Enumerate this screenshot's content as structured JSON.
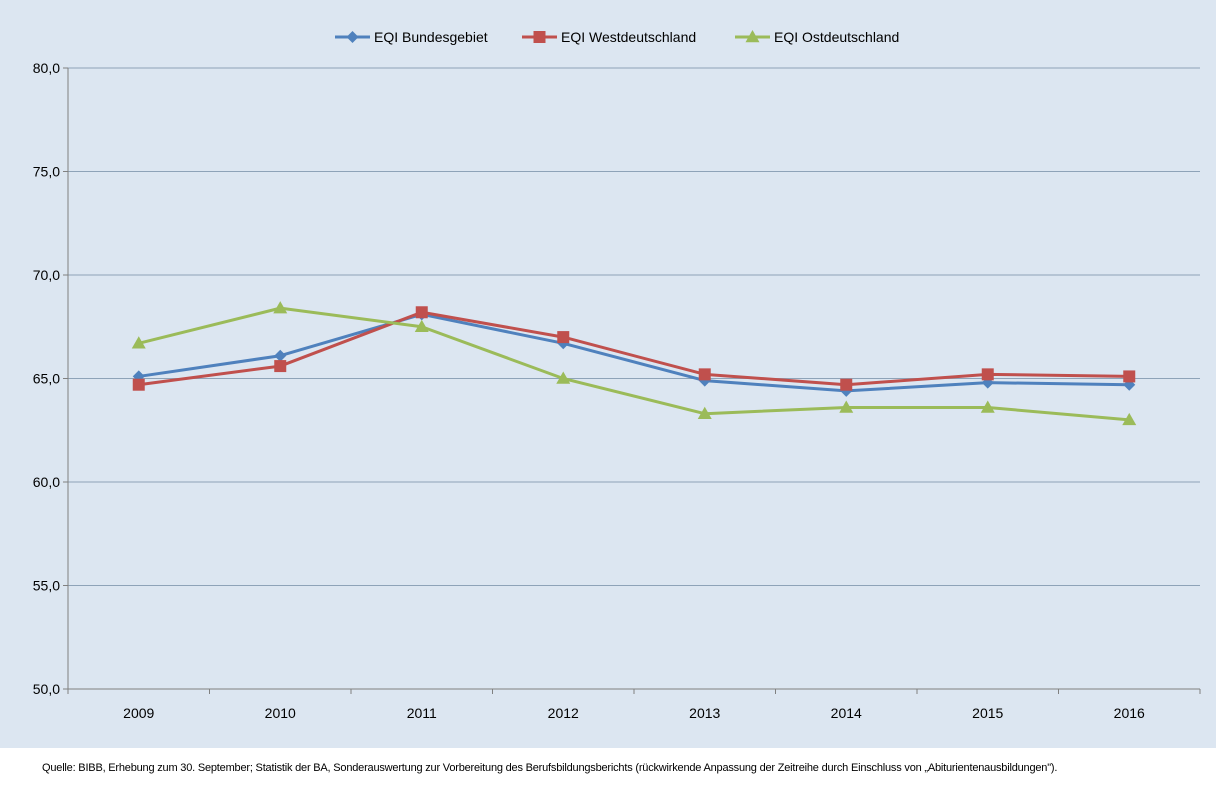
{
  "chart_data": {
    "type": "line",
    "categories": [
      "2009",
      "2010",
      "2011",
      "2012",
      "2013",
      "2014",
      "2015",
      "2016"
    ],
    "series": [
      {
        "name": "EQI Bundesgebiet",
        "color": "#4f81bd",
        "marker": "diamond",
        "values": [
          65.1,
          66.1,
          68.1,
          66.7,
          64.9,
          64.4,
          64.8,
          64.7
        ]
      },
      {
        "name": "EQI Westdeutschland",
        "color": "#c0504d",
        "marker": "square",
        "values": [
          64.7,
          65.6,
          68.2,
          67.0,
          65.2,
          64.7,
          65.2,
          65.1
        ]
      },
      {
        "name": "EQI Ostdeutschland",
        "color": "#9bbb59",
        "marker": "triangle",
        "values": [
          66.7,
          68.4,
          67.5,
          65.0,
          63.3,
          63.6,
          63.6,
          63.0
        ]
      }
    ],
    "ylim": [
      50,
      80
    ],
    "yticks": [
      "50,0",
      "55,0",
      "60,0",
      "65,0",
      "70,0",
      "75,0",
      "80,0"
    ],
    "grid": true,
    "legend_position": "top-center",
    "background": "#dce6f1",
    "gridline_color": "#8ea3b8"
  },
  "source_note": "Quelle: BIBB, Erhebung zum 30. September; Statistik der BA, Sonderauswertung zur Vorbereitung des Berufsbildungsberichts (rückwirkende Anpassung der Zeitreihe durch Einschluss von „Abiturientenausbildungen\")."
}
